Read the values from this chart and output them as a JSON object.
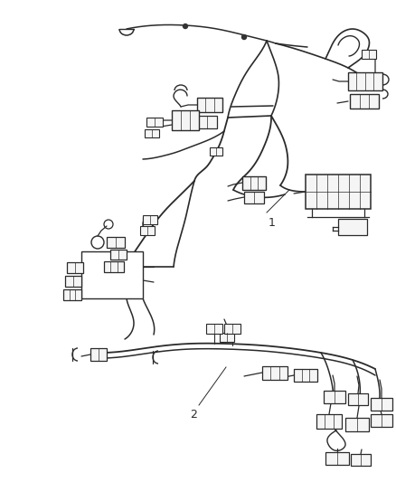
{
  "bg_color": "#ffffff",
  "line_color": "#2a2a2a",
  "label_1": "1",
  "label_2": "2",
  "fig_width": 4.39,
  "fig_height": 5.33,
  "dpi": 100
}
